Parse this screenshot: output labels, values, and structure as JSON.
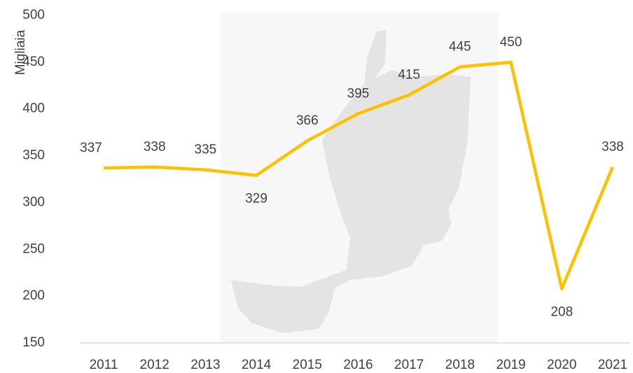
{
  "chart_data": {
    "type": "line",
    "y_axis_title": "Migliaia",
    "categories": [
      "2011",
      "2012",
      "2013",
      "2014",
      "2015",
      "2016",
      "2017",
      "2018",
      "2019",
      "2020",
      "2021"
    ],
    "values": [
      337,
      338,
      335,
      329,
      366,
      395,
      415,
      445,
      450,
      208,
      338
    ],
    "color": "#FFC000",
    "ylim": [
      150,
      500
    ],
    "yticks": [
      150,
      200,
      250,
      300,
      350,
      400,
      450,
      500
    ],
    "grid": false
  }
}
